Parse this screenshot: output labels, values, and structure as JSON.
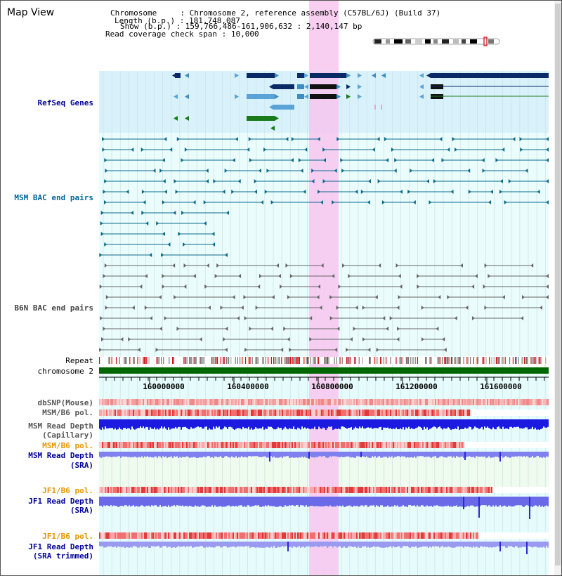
{
  "view_title": "Map View",
  "header": {
    "chromosome_label": "Chromosome",
    "chromosome_value": "Chromosome 2, reference assembly (C57BL/6J) (Build 37)",
    "length_label": "Length (b.p.)",
    "length_value": "181,748,087",
    "show_label": "Show (b.p.)",
    "show_value": "159,766,486-161,906,632 : 2,140,147 bp",
    "span_label": "Read coverage check span",
    "span_value": "10,000"
  },
  "tracks": {
    "refseq": "RefSeq Genes",
    "msm_bac": "MSM BAC end pairs",
    "b6n_bac": "B6N BAC end pairs",
    "repeat": "Repeat",
    "chromosome": "chromosome 2",
    "dbsnp": "dbSNP(Mouse)",
    "msm_pol": "MSM/B6 pol.",
    "msm_depth_cap_1": "MSM Read Depth",
    "msm_depth_cap_2": "(Capillary)",
    "msm_pol2": "MSM/B6 pol.",
    "msm_depth_sra_1": "MSM Read Depth",
    "msm_depth_sra_2": "(SRA)",
    "jf1_pol": "JF1/B6 pol.",
    "jf1_depth_sra_1": "JF1 Read Depth",
    "jf1_depth_sra_2": "(SRA)",
    "jf1_pol2": "JF1/B6 pol.",
    "jf1_depth_trim_1": "JF1 Read Depth",
    "jf1_depth_trim_2": "(SRA trimmed)"
  },
  "ruler": {
    "ticks": [
      "160000000",
      "160400000",
      "160800000",
      "161200000",
      "161600000"
    ]
  },
  "colors": {
    "refseq_label": "#000099",
    "msm_label": "#006699",
    "b6n_label": "#444444",
    "pol_orange": "#e69500",
    "depth_blue": "#000099",
    "highlight": "#f7c6ef",
    "chromosome_green": "#006600"
  }
}
